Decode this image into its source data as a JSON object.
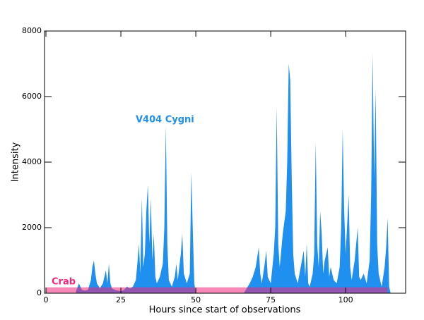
{
  "chart_data": {
    "type": "area",
    "xlabel": "Hours since start of observations",
    "ylabel": "Intensity",
    "xlim": [
      0,
      120
    ],
    "xticks": [
      0,
      25,
      50,
      75,
      100
    ],
    "ylim": [
      0,
      8000
    ],
    "yticks": [
      0,
      2000,
      4000,
      6000,
      8000
    ],
    "series": [
      {
        "name": "V404 Cygni",
        "color": "#1f8ff0",
        "x": [
          10,
          11,
          12,
          13,
          14,
          15,
          15.5,
          16,
          16.5,
          17,
          18,
          19,
          20,
          20.5,
          21,
          21.5,
          22,
          23,
          24,
          25,
          26,
          27,
          28,
          29,
          30,
          30.5,
          31,
          31.5,
          32,
          32.5,
          33,
          33.5,
          34,
          34.5,
          35,
          35.5,
          36,
          36.5,
          37,
          38,
          39,
          39.5,
          40,
          40.5,
          41,
          42,
          43,
          43.5,
          44,
          45,
          45.5,
          46,
          47,
          48,
          48.5,
          49,
          49.5,
          50,
          66,
          67,
          68,
          69,
          70,
          71,
          71.5,
          72,
          73,
          73.5,
          74,
          75,
          76,
          76.5,
          77,
          77.5,
          78,
          79,
          80,
          80.5,
          81,
          81.5,
          82,
          82.5,
          83,
          84,
          85,
          86,
          86.5,
          87,
          87.5,
          88,
          89,
          89.5,
          90,
          90.5,
          91,
          91.5,
          92,
          92.5,
          93,
          94,
          94.5,
          95,
          96,
          97,
          98,
          98.5,
          99,
          99.5,
          100,
          101,
          101.5,
          102,
          103,
          104,
          104.5,
          105,
          106,
          107,
          108,
          108.5,
          109,
          109.5,
          110,
          110.5,
          111,
          112,
          113,
          113.5,
          114,
          114.5,
          115
        ],
        "values": [
          50,
          300,
          100,
          80,
          100,
          400,
          800,
          1000,
          600,
          300,
          150,
          300,
          700,
          300,
          900,
          300,
          150,
          100,
          80,
          60,
          100,
          200,
          150,
          200,
          400,
          900,
          1500,
          600,
          2900,
          800,
          1200,
          2500,
          3300,
          1500,
          2900,
          1000,
          1800,
          500,
          300,
          500,
          900,
          2000,
          5100,
          1500,
          400,
          200,
          500,
          900,
          400,
          1200,
          1800,
          600,
          300,
          600,
          3700,
          1900,
          300,
          0,
          0,
          150,
          300,
          500,
          800,
          1400,
          600,
          300,
          900,
          1300,
          500,
          300,
          1200,
          2000,
          5700,
          1500,
          800,
          1800,
          2500,
          4000,
          7000,
          6500,
          3500,
          1200,
          600,
          300,
          800,
          1300,
          500,
          1500,
          300,
          200,
          600,
          1200,
          4600,
          1500,
          800,
          2500,
          1800,
          600,
          1000,
          1400,
          500,
          800,
          400,
          300,
          800,
          2000,
          5000,
          2500,
          1200,
          3000,
          800,
          400,
          1000,
          2000,
          500,
          400,
          600,
          300,
          1000,
          3000,
          7300,
          3500,
          6200,
          1500,
          600,
          200,
          800,
          1400,
          2300,
          200,
          0
        ]
      },
      {
        "name": "Crab",
        "color": "#f0287d",
        "x": [
          0,
          114
        ],
        "values": [
          180,
          180
        ]
      }
    ]
  }
}
